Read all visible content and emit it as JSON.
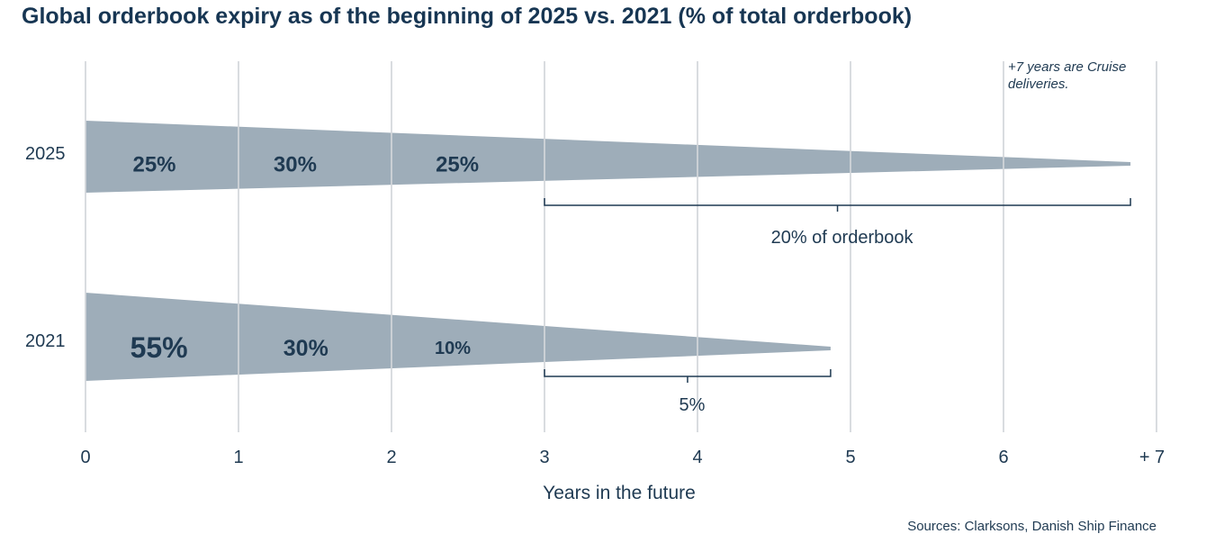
{
  "chart_data": {
    "type": "area",
    "title": "Global orderbook expiry as of the beginning of 2025 vs. 2021 (% of total orderbook)",
    "xlabel": "Years in the future",
    "ylabel": "",
    "x_ticks": [
      "0",
      "1",
      "2",
      "3",
      "4",
      "5",
      "6",
      "+ 7"
    ],
    "xlim": [
      0,
      7
    ],
    "grid": true,
    "series": [
      {
        "name": "2025",
        "end_year": 6.83,
        "segments": [
          {
            "label": "25%",
            "x": 0.45
          },
          {
            "label": "30%",
            "x": 1.37
          },
          {
            "label": "25%",
            "x": 2.43
          }
        ],
        "bracket": {
          "from": 3,
          "to": 6.83,
          "label": "20% of orderbook"
        }
      },
      {
        "name": "2021",
        "end_year": 4.87,
        "segments": [
          {
            "label": "55%",
            "x": 0.48
          },
          {
            "label": "30%",
            "x": 1.44
          },
          {
            "label": "10%",
            "x": 2.4
          }
        ],
        "bracket": {
          "from": 3,
          "to": 4.87,
          "label": "5%"
        }
      }
    ],
    "annotation": "+7 years are Cruise deliveries.",
    "fill_color": "#9eadb9",
    "text_color": "#1f3a52",
    "grid_color": "#d3d7db"
  },
  "source": "Sources: Clarksons, Danish Ship Finance"
}
